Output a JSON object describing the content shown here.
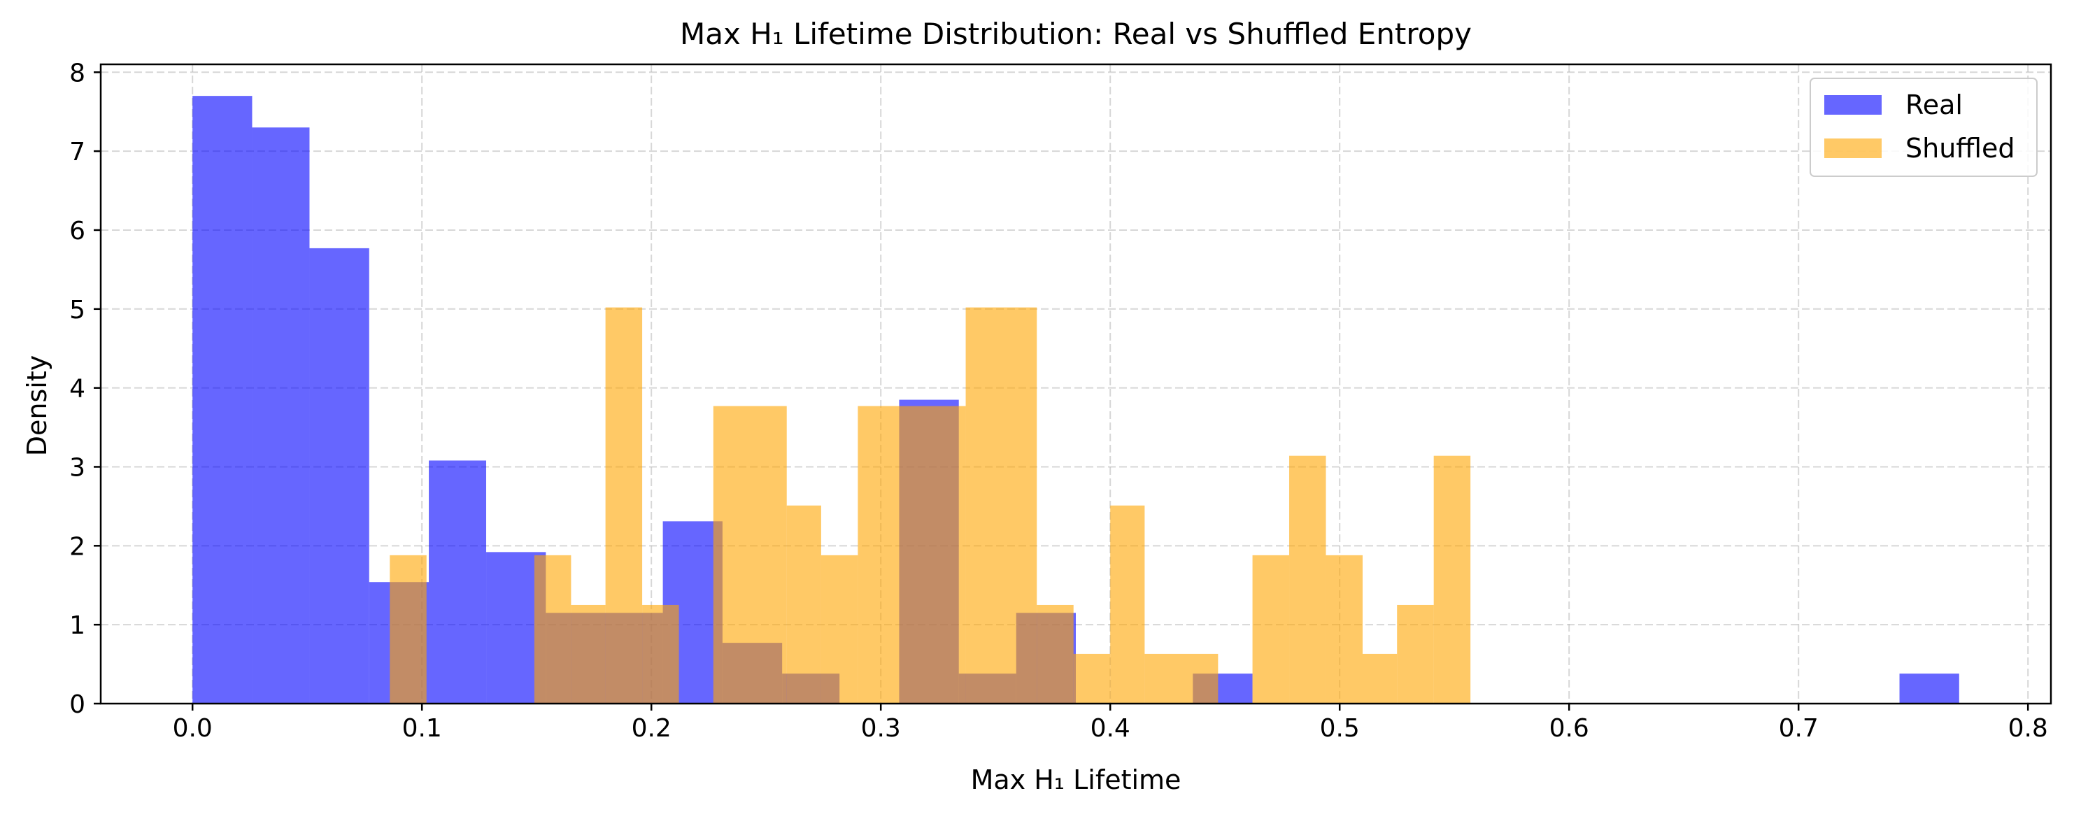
{
  "chart_data": {
    "type": "bar",
    "subtype": "overlapping-histogram",
    "title": "Max H₁ Lifetime Distribution: Real vs Shuffled Entropy",
    "xlabel": "Max H₁ Lifetime",
    "ylabel": "Density",
    "xlim": [
      -0.04,
      0.81
    ],
    "ylim": [
      0,
      8.1
    ],
    "x_ticks": [
      0.0,
      0.1,
      0.2,
      0.3,
      0.4,
      0.5,
      0.6,
      0.7,
      0.8
    ],
    "x_tick_labels": [
      "0.0",
      "0.1",
      "0.2",
      "0.3",
      "0.4",
      "0.5",
      "0.6",
      "0.7",
      "0.8"
    ],
    "y_ticks": [
      0,
      1,
      2,
      3,
      4,
      5,
      6,
      7,
      8
    ],
    "y_tick_labels": [
      "0",
      "1",
      "2",
      "3",
      "4",
      "5",
      "6",
      "7",
      "8"
    ],
    "grid": true,
    "legend_position": "top-right",
    "series": [
      {
        "name": "Real",
        "color": "#0000ff",
        "alpha": 0.6,
        "bins": [
          {
            "x0": 0.0,
            "x1": 0.026,
            "y": 7.7
          },
          {
            "x0": 0.026,
            "x1": 0.051,
            "y": 7.3
          },
          {
            "x0": 0.051,
            "x1": 0.077,
            "y": 5.77
          },
          {
            "x0": 0.077,
            "x1": 0.103,
            "y": 1.54
          },
          {
            "x0": 0.103,
            "x1": 0.128,
            "y": 3.08
          },
          {
            "x0": 0.128,
            "x1": 0.154,
            "y": 1.92
          },
          {
            "x0": 0.154,
            "x1": 0.205,
            "y": 1.15
          },
          {
            "x0": 0.205,
            "x1": 0.231,
            "y": 2.31
          },
          {
            "x0": 0.231,
            "x1": 0.257,
            "y": 0.77
          },
          {
            "x0": 0.257,
            "x1": 0.282,
            "y": 0.38
          },
          {
            "x0": 0.308,
            "x1": 0.334,
            "y": 3.85
          },
          {
            "x0": 0.334,
            "x1": 0.359,
            "y": 0.38
          },
          {
            "x0": 0.359,
            "x1": 0.385,
            "y": 1.15
          },
          {
            "x0": 0.436,
            "x1": 0.462,
            "y": 0.38
          },
          {
            "x0": 0.744,
            "x1": 0.77,
            "y": 0.38
          }
        ]
      },
      {
        "name": "Shuffled",
        "color": "#ffa500",
        "alpha": 0.6,
        "bins": [
          {
            "x0": 0.086,
            "x1": 0.102,
            "y": 1.88
          },
          {
            "x0": 0.149,
            "x1": 0.165,
            "y": 1.88
          },
          {
            "x0": 0.165,
            "x1": 0.18,
            "y": 1.25
          },
          {
            "x0": 0.18,
            "x1": 0.196,
            "y": 5.02
          },
          {
            "x0": 0.196,
            "x1": 0.212,
            "y": 1.25
          },
          {
            "x0": 0.227,
            "x1": 0.259,
            "y": 3.77
          },
          {
            "x0": 0.259,
            "x1": 0.274,
            "y": 2.51
          },
          {
            "x0": 0.274,
            "x1": 0.29,
            "y": 1.88
          },
          {
            "x0": 0.29,
            "x1": 0.337,
            "y": 3.77
          },
          {
            "x0": 0.337,
            "x1": 0.368,
            "y": 5.02
          },
          {
            "x0": 0.368,
            "x1": 0.384,
            "y": 1.25
          },
          {
            "x0": 0.384,
            "x1": 0.4,
            "y": 0.63
          },
          {
            "x0": 0.4,
            "x1": 0.415,
            "y": 2.51
          },
          {
            "x0": 0.415,
            "x1": 0.447,
            "y": 0.63
          },
          {
            "x0": 0.462,
            "x1": 0.478,
            "y": 1.88
          },
          {
            "x0": 0.478,
            "x1": 0.494,
            "y": 3.14
          },
          {
            "x0": 0.494,
            "x1": 0.51,
            "y": 1.88
          },
          {
            "x0": 0.51,
            "x1": 0.525,
            "y": 0.63
          },
          {
            "x0": 0.525,
            "x1": 0.541,
            "y": 1.25
          },
          {
            "x0": 0.541,
            "x1": 0.557,
            "y": 3.14
          }
        ]
      }
    ]
  }
}
